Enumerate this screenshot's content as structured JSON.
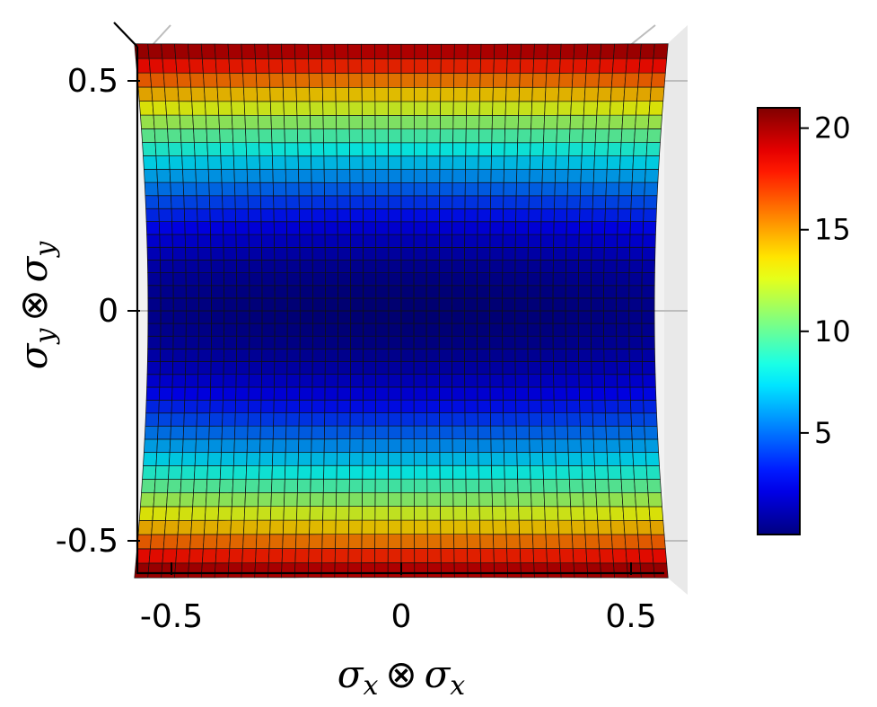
{
  "chart_data": {
    "type": "heatmap",
    "subtype": "3d-surface-top-view",
    "title": "",
    "xlabel": "σ_x ⊗ σ_x",
    "ylabel": "σ_y ⊗ σ_y",
    "xlabel_main": "σ",
    "xlabel_sub": "x",
    "xlabel_op": "⊗",
    "ylabel_main": "σ",
    "ylabel_sub": "y",
    "ylabel_op": "⊗",
    "xlim": [
      -0.55,
      0.55
    ],
    "ylim": [
      -0.55,
      0.55
    ],
    "x_ticks": [
      -0.5,
      0,
      0.5
    ],
    "x_tick_labels": [
      "-0.5",
      "0",
      "0.5"
    ],
    "y_ticks": [
      -0.5,
      0,
      0.5
    ],
    "y_tick_labels": [
      "-0.5",
      "0",
      "0.5"
    ],
    "grid_resolution": 40,
    "z_model": "z = 68*y^2 + 2*x^2 (approx.)",
    "z_min": 0,
    "z_max": 21,
    "colormap": "jet",
    "colormap_stops": [
      "#00007f",
      "#0000ff",
      "#007fff",
      "#00ffff",
      "#7fff7f",
      "#ffff00",
      "#ff7f00",
      "#ff0000",
      "#7f0000"
    ],
    "colorbar": {
      "ticks": [
        5,
        10,
        15,
        20
      ],
      "tick_labels": [
        "5",
        "10",
        "15",
        "20"
      ],
      "range": [
        0,
        21
      ]
    },
    "grid": true
  }
}
